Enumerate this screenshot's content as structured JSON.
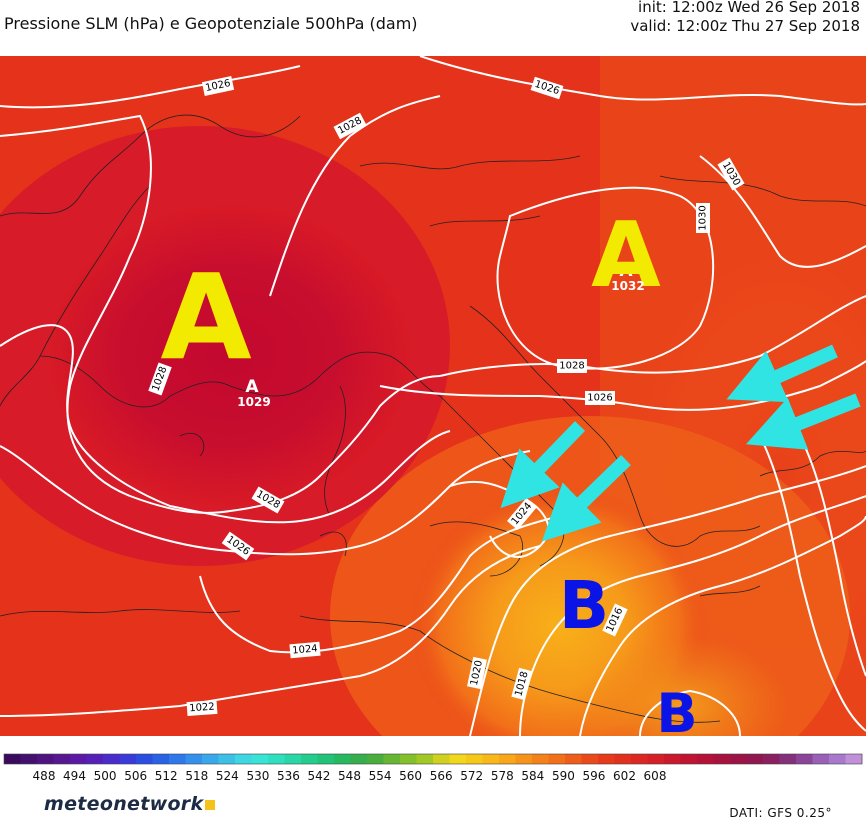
{
  "header": {
    "title": "Pressione SLM (hPa) e Geopotenziale 500hPa (dam)",
    "init": "init: 12:00z Wed 26 Sep 2018",
    "valid": "valid: 12:00z Thu 27 Sep 2018"
  },
  "map": {
    "background_color": "#e8331a",
    "high_color": "#c90f2e",
    "low_color": "#f8a91a",
    "isobar_labels": [
      "1026",
      "1028",
      "1026",
      "1030",
      "1030",
      "1028",
      "1026",
      "1028",
      "1028",
      "1026",
      "1024",
      "1024",
      "1022",
      "1020",
      "1018",
      "1016"
    ],
    "centers": {
      "high_west_letter": "A",
      "high_west_small": "A",
      "high_west_value": "1029",
      "high_east_letter": "A",
      "high_east_small": "A",
      "high_east_value": "1032",
      "low_central_letter": "B",
      "low_south_letter": "B"
    },
    "arrow_color": "#30e4e4"
  },
  "legend": {
    "colors": [
      "#3a0a5e",
      "#44106e",
      "#4e137f",
      "#571790",
      "#5a1aa5",
      "#5520b8",
      "#4a2bcc",
      "#3a3ad8",
      "#2a4ee0",
      "#2a62e6",
      "#2f78ea",
      "#3590ec",
      "#39a8ea",
      "#3dc0e6",
      "#3ed6e2",
      "#39e4d6",
      "#2ee0c0",
      "#28d6a6",
      "#24cc8e",
      "#22c278",
      "#28b862",
      "#36ae4e",
      "#4aae3e",
      "#66b634",
      "#84c02c",
      "#a2c826",
      "#d0d020",
      "#f2d81c",
      "#f6c81a",
      "#f8b81a",
      "#f8a61a",
      "#f6941a",
      "#f4821a",
      "#f2701a",
      "#ee5e1a",
      "#ea4a1a",
      "#e63a1a",
      "#e2301e",
      "#dc2822",
      "#d42026",
      "#ca182c",
      "#c01432",
      "#b41238",
      "#a8123e",
      "#9c1446",
      "#90184e",
      "#8a2060",
      "#84307a",
      "#8a4498",
      "#9a60b8",
      "#a878cc",
      "#c090d8"
    ],
    "ticks": [
      "488",
      "494",
      "500",
      "506",
      "512",
      "518",
      "524",
      "530",
      "536",
      "542",
      "548",
      "554",
      "560",
      "566",
      "572",
      "578",
      "584",
      "590",
      "596",
      "602",
      "608"
    ]
  },
  "footer": {
    "brand": "meteonetwork",
    "source": "DATI:  GFS  0.25°"
  }
}
